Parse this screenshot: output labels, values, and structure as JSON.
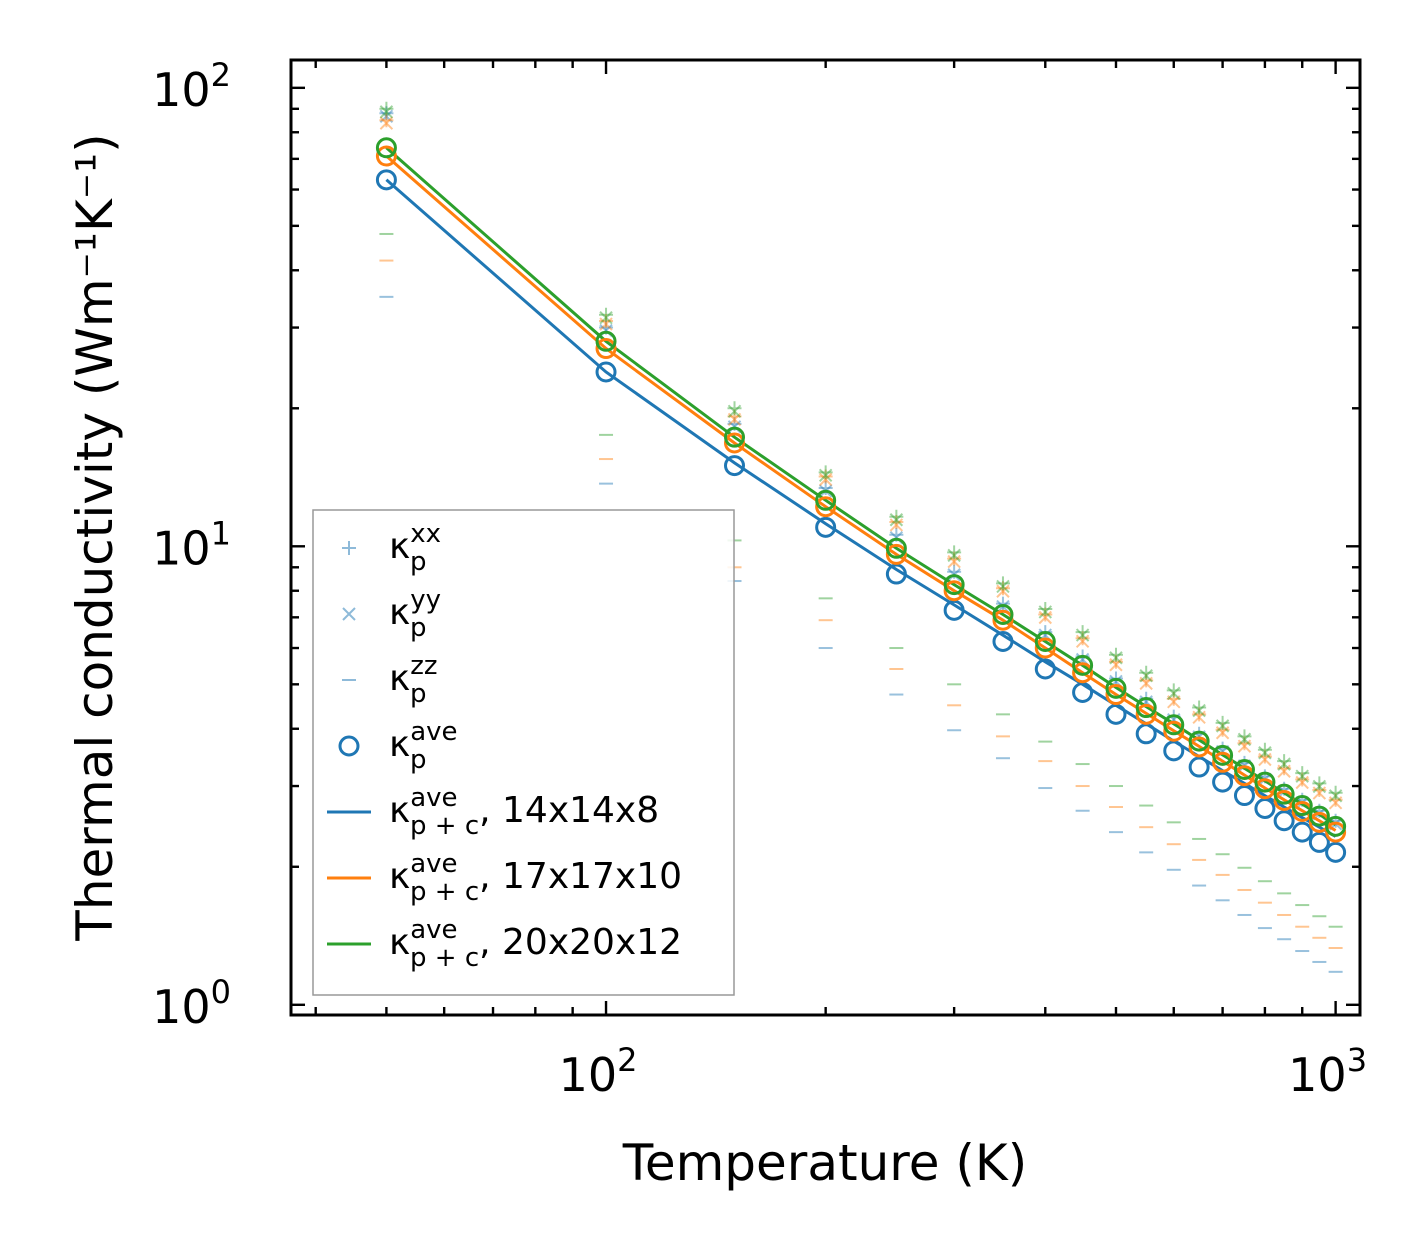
{
  "chart_data": {
    "type": "line",
    "xlabel": "Temperature (K)",
    "ylabel": "Thermal conductivity (Wm⁻¹K⁻¹)",
    "xscale": "log",
    "yscale": "log",
    "xlim": [
      37,
      1080
    ],
    "ylim": [
      0.95,
      115
    ],
    "x_ticks": [
      {
        "base": "10",
        "exp": "2",
        "value": 100
      },
      {
        "base": "10",
        "exp": "3",
        "value": 1000
      }
    ],
    "y_ticks": [
      {
        "base": "10",
        "exp": "0",
        "value": 1
      },
      {
        "base": "10",
        "exp": "1",
        "value": 10
      },
      {
        "base": "10",
        "exp": "2",
        "value": 100
      }
    ],
    "x": [
      50,
      100,
      150,
      200,
      250,
      300,
      350,
      400,
      450,
      500,
      550,
      600,
      650,
      700,
      750,
      800,
      850,
      900,
      950,
      1000
    ],
    "series": [
      {
        "name": "14x14x8",
        "color": "#1f77b4",
        "kxx": [
          88,
          30,
          18.5,
          13.4,
          10.6,
          8.8,
          7.5,
          6.5,
          5.75,
          5.15,
          4.65,
          4.25,
          3.9,
          3.62,
          3.37,
          3.15,
          2.96,
          2.8,
          2.65,
          2.52
        ],
        "kyy": [
          88,
          30,
          18.5,
          13.4,
          10.6,
          8.8,
          7.5,
          6.5,
          5.75,
          5.15,
          4.65,
          4.25,
          3.9,
          3.62,
          3.37,
          3.15,
          2.96,
          2.8,
          2.65,
          2.52
        ],
        "kzz": [
          35,
          13.7,
          8.4,
          6.0,
          4.75,
          3.97,
          3.45,
          2.97,
          2.65,
          2.38,
          2.15,
          1.97,
          1.82,
          1.69,
          1.57,
          1.47,
          1.39,
          1.31,
          1.24,
          1.18
        ],
        "kave": [
          63,
          24,
          15,
          11,
          8.7,
          7.25,
          6.2,
          5.4,
          4.8,
          4.3,
          3.9,
          3.58,
          3.3,
          3.06,
          2.86,
          2.68,
          2.52,
          2.38,
          2.26,
          2.15
        ],
        "kpc": [
          63,
          24,
          15.2,
          11.2,
          8.9,
          7.45,
          6.4,
          5.6,
          5.0,
          4.5,
          4.1,
          3.76,
          3.48,
          3.24,
          3.04,
          2.86,
          2.7,
          2.56,
          2.44,
          2.33
        ]
      },
      {
        "name": "17x17x10",
        "color": "#ff7f0e",
        "kxx": [
          85,
          31,
          19.2,
          14.2,
          11.3,
          9.4,
          8.1,
          7.1,
          6.3,
          5.6,
          5.1,
          4.65,
          4.3,
          3.98,
          3.72,
          3.48,
          3.28,
          3.1,
          2.94,
          2.8
        ],
        "kyy": [
          85,
          31,
          19.2,
          14.2,
          11.3,
          9.4,
          8.1,
          7.1,
          6.3,
          5.6,
          5.1,
          4.65,
          4.3,
          3.98,
          3.72,
          3.48,
          3.28,
          3.1,
          2.94,
          2.8
        ],
        "kzz": [
          42,
          15.5,
          9.0,
          6.9,
          5.4,
          4.5,
          3.85,
          3.4,
          3.0,
          2.7,
          2.44,
          2.24,
          2.07,
          1.92,
          1.78,
          1.67,
          1.57,
          1.48,
          1.4,
          1.33
        ],
        "kave": [
          71,
          27,
          16.8,
          12.2,
          9.6,
          8.0,
          6.9,
          6.0,
          5.3,
          4.75,
          4.3,
          3.95,
          3.65,
          3.38,
          3.16,
          2.96,
          2.79,
          2.64,
          2.5,
          2.38
        ],
        "kpc": [
          71,
          27,
          16.8,
          12.2,
          9.6,
          8.0,
          6.9,
          6.0,
          5.3,
          4.75,
          4.32,
          3.96,
          3.66,
          3.4,
          3.17,
          2.97,
          2.8,
          2.65,
          2.52,
          2.4
        ]
      },
      {
        "name": "20x20x12",
        "color": "#2ca02c",
        "kxx": [
          90,
          32,
          20,
          14.5,
          11.6,
          9.7,
          8.3,
          7.3,
          6.5,
          5.8,
          5.3,
          4.85,
          4.45,
          4.12,
          3.85,
          3.6,
          3.4,
          3.2,
          3.04,
          2.9
        ],
        "kyy": [
          90,
          32,
          20,
          14.5,
          11.6,
          9.7,
          8.3,
          7.3,
          6.5,
          5.8,
          5.3,
          4.85,
          4.45,
          4.12,
          3.85,
          3.6,
          3.4,
          3.2,
          3.04,
          2.9
        ],
        "kzz": [
          48,
          17.5,
          10.3,
          7.7,
          6.0,
          5.0,
          4.3,
          3.75,
          3.35,
          3.0,
          2.72,
          2.5,
          2.3,
          2.13,
          1.99,
          1.86,
          1.75,
          1.65,
          1.56,
          1.48
        ],
        "kave": [
          74,
          28,
          17.3,
          12.6,
          9.9,
          8.25,
          7.1,
          6.2,
          5.5,
          4.9,
          4.45,
          4.08,
          3.76,
          3.5,
          3.26,
          3.06,
          2.88,
          2.72,
          2.58,
          2.45
        ],
        "kpc": [
          74,
          28,
          17.3,
          12.6,
          9.9,
          8.25,
          7.1,
          6.2,
          5.5,
          4.92,
          4.47,
          4.1,
          3.78,
          3.51,
          3.28,
          3.08,
          2.9,
          2.74,
          2.6,
          2.47
        ]
      }
    ],
    "legend": {
      "location": "lower-left",
      "entries": [
        {
          "marker": "plus",
          "symbol": "κ",
          "sub": "p",
          "sup": "xx",
          "suffix": ""
        },
        {
          "marker": "x",
          "symbol": "κ",
          "sub": "p",
          "sup": "yy",
          "suffix": ""
        },
        {
          "marker": "dash",
          "symbol": "κ",
          "sub": "p",
          "sup": "zz",
          "suffix": ""
        },
        {
          "marker": "circle",
          "symbol": "κ",
          "sub": "p",
          "sup": "ave",
          "suffix": ""
        },
        {
          "marker": "line",
          "color": "#1f77b4",
          "symbol": "κ",
          "sub": "p + c",
          "sup": "ave",
          "suffix": ", 14x14x8"
        },
        {
          "marker": "line",
          "color": "#ff7f0e",
          "symbol": "κ",
          "sub": "p + c",
          "sup": "ave",
          "suffix": ", 17x17x10"
        },
        {
          "marker": "line",
          "color": "#2ca02c",
          "symbol": "κ",
          "sub": "p + c",
          "sup": "ave",
          "suffix": ", 20x20x12"
        }
      ]
    }
  }
}
